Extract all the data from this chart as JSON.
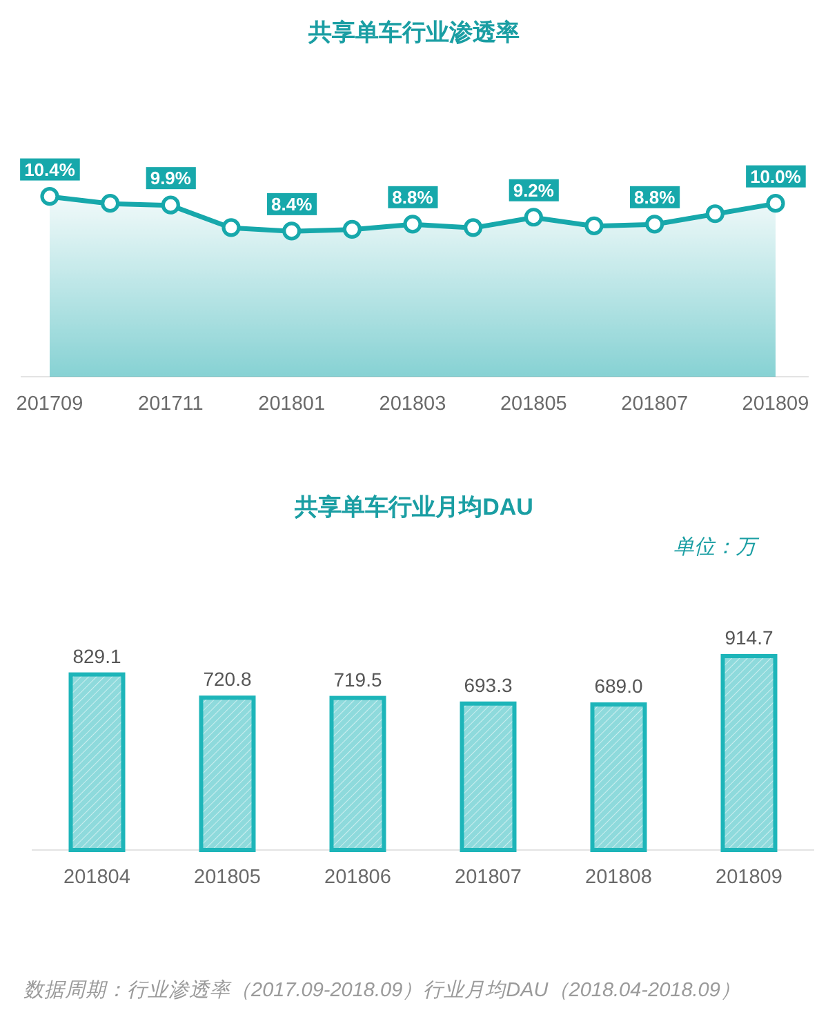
{
  "chart_data": [
    {
      "type": "area",
      "title": "共享单车行业渗透率",
      "categories": [
        "201709",
        null,
        "201711",
        null,
        "201801",
        null,
        "201803",
        null,
        "201805",
        null,
        "201807",
        null,
        "201809"
      ],
      "series": [
        {
          "color": "#17a8ab",
          "values": [
            10.4,
            10.0,
            9.9,
            8.6,
            8.4,
            8.5,
            8.8,
            8.6,
            9.2,
            8.7,
            8.8,
            9.4,
            10.0
          ],
          "value_labels": [
            "10.4%",
            null,
            "9.9%",
            null,
            "8.4%",
            null,
            "8.8%",
            null,
            "9.2%",
            null,
            "8.8%",
            null,
            "10.0%"
          ]
        }
      ],
      "marker": "circle",
      "tick_labels": "x"
    },
    {
      "type": "bar",
      "title": "共享单车行业月均DAU",
      "categories": [
        "201804",
        "201805",
        "201806",
        "201807",
        "201808",
        "201809"
      ],
      "series": [
        {
          "color": "#1db5b9",
          "values": [
            829.1,
            720.8,
            719.5,
            693.3,
            689.0,
            914.7
          ],
          "value_labels": [
            "829.1",
            "720.8",
            "719.5",
            "693.3",
            "689.0",
            "914.7"
          ]
        }
      ],
      "tick_labels": "x",
      "annotations": [
        "单位：万",
        "数据周期：行业渗透率（2017.09-2018.09）行业月均DAU（2018.04-2018.09）"
      ]
    }
  ]
}
